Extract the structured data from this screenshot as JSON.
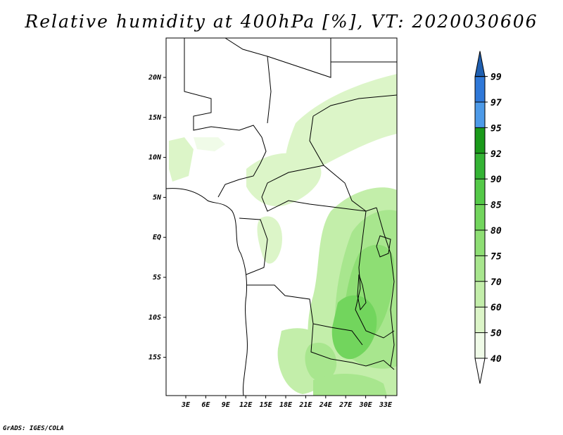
{
  "title": "Relative humidity at 400hPa [%], VT: 2020030606",
  "credit": "GrADS: IGES/COLA",
  "map": {
    "lat_ticks": [
      "20N",
      "15N",
      "10N",
      "5N",
      "EQ",
      "5S",
      "10S",
      "15S"
    ],
    "lon_ticks": [
      "3E",
      "6E",
      "9E",
      "12E",
      "15E",
      "18E",
      "21E",
      "24E",
      "27E",
      "30E",
      "33E"
    ]
  },
  "colorbar": {
    "levels": [
      "40",
      "50",
      "60",
      "70",
      "75",
      "80",
      "85",
      "90",
      "92",
      "95",
      "97",
      "99"
    ],
    "colors": [
      "#f0fbe8",
      "#dcf5c8",
      "#c3eeaa",
      "#a8e68e",
      "#8ede74",
      "#72d55d",
      "#54c948",
      "#34b334",
      "#1a991a",
      "#4d9ae8",
      "#2f78d8",
      "#1f5fb0"
    ],
    "under_color": "#ffffff"
  },
  "colors": {
    "border": "#000000",
    "background": "#ffffff"
  }
}
